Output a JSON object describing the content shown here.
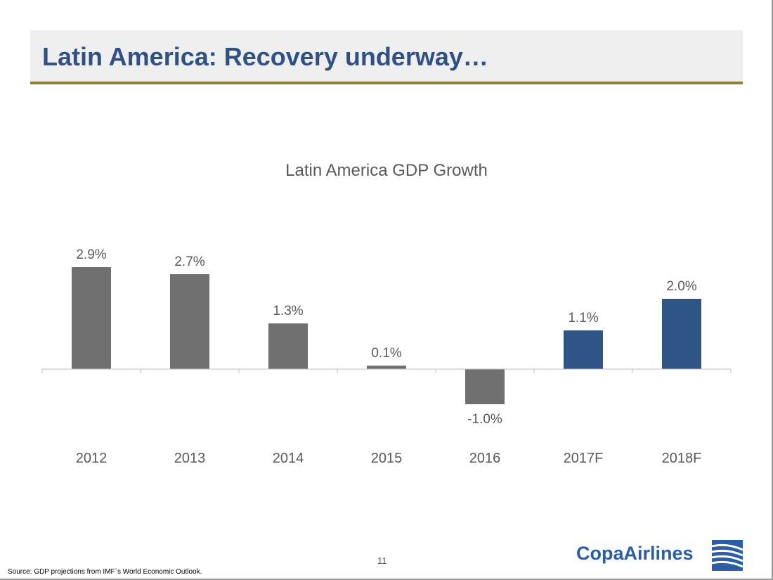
{
  "slide": {
    "title": "Latin America: Recovery underway…",
    "page_number": "11",
    "source": "Source: GDP projections from IMF´s World Economic Outlook.",
    "logo_text": "CopaAirlines"
  },
  "colors": {
    "title_text": "#2f5184",
    "title_rule": "#8b7d3a",
    "actual_bar": "#707070",
    "forecast_bar": "#2f5586",
    "label_text": "#595959"
  },
  "chart_data": {
    "type": "bar",
    "title": "Latin America GDP Growth",
    "xlabel": "",
    "ylabel": "",
    "categories": [
      "2012",
      "2013",
      "2014",
      "2015",
      "2016",
      "2017F",
      "2018F"
    ],
    "values": [
      2.9,
      2.7,
      1.3,
      0.1,
      -1.0,
      1.1,
      2.0
    ],
    "labels": [
      "2.9%",
      "2.7%",
      "1.3%",
      "0.1%",
      "-1.0%",
      "1.1%",
      "2.0%"
    ],
    "forecast": [
      false,
      false,
      false,
      false,
      false,
      true,
      true
    ],
    "unit": "%",
    "grid": false,
    "legend": "none"
  }
}
